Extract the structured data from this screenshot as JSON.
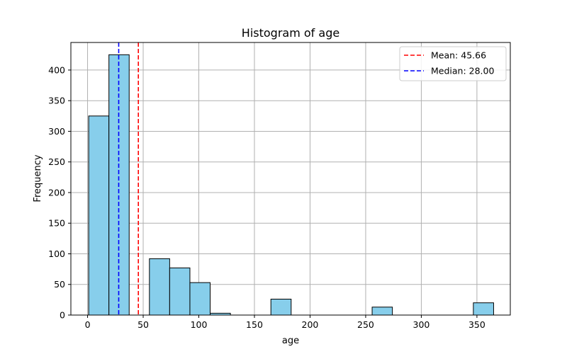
{
  "chart_data": {
    "type": "bar",
    "title": "Histogram of age",
    "xlabel": "age",
    "ylabel": "Frequency",
    "xlim": [
      -15,
      380
    ],
    "ylim": [
      0,
      445
    ],
    "xticks": [
      0,
      50,
      100,
      150,
      200,
      250,
      300,
      350
    ],
    "yticks": [
      0,
      50,
      100,
      150,
      200,
      250,
      300,
      350,
      400
    ],
    "grid": true,
    "legend_position": "top-right",
    "bin_width": 18.2,
    "bins": [
      {
        "start": 1,
        "value": 325
      },
      {
        "start": 19.2,
        "value": 425
      },
      {
        "start": 37.4,
        "value": 0
      },
      {
        "start": 55.6,
        "value": 92
      },
      {
        "start": 73.8,
        "value": 77
      },
      {
        "start": 92,
        "value": 53
      },
      {
        "start": 110.2,
        "value": 3
      },
      {
        "start": 128.4,
        "value": 0
      },
      {
        "start": 146.6,
        "value": 0
      },
      {
        "start": 164.8,
        "value": 26
      },
      {
        "start": 183,
        "value": 0
      },
      {
        "start": 201.2,
        "value": 0
      },
      {
        "start": 219.4,
        "value": 0
      },
      {
        "start": 237.6,
        "value": 0
      },
      {
        "start": 255.8,
        "value": 13
      },
      {
        "start": 274,
        "value": 0
      },
      {
        "start": 292.2,
        "value": 0
      },
      {
        "start": 310.4,
        "value": 0
      },
      {
        "start": 328.6,
        "value": 0
      },
      {
        "start": 346.8,
        "value": 20
      }
    ],
    "bar_color": "#87CEEB",
    "edge_color": "#000000",
    "reference_lines": [
      {
        "label": "Mean: 45.66",
        "x": 45.66,
        "color": "#ff0000"
      },
      {
        "label": "Median: 28.00",
        "x": 28.0,
        "color": "#0000ff"
      }
    ]
  }
}
